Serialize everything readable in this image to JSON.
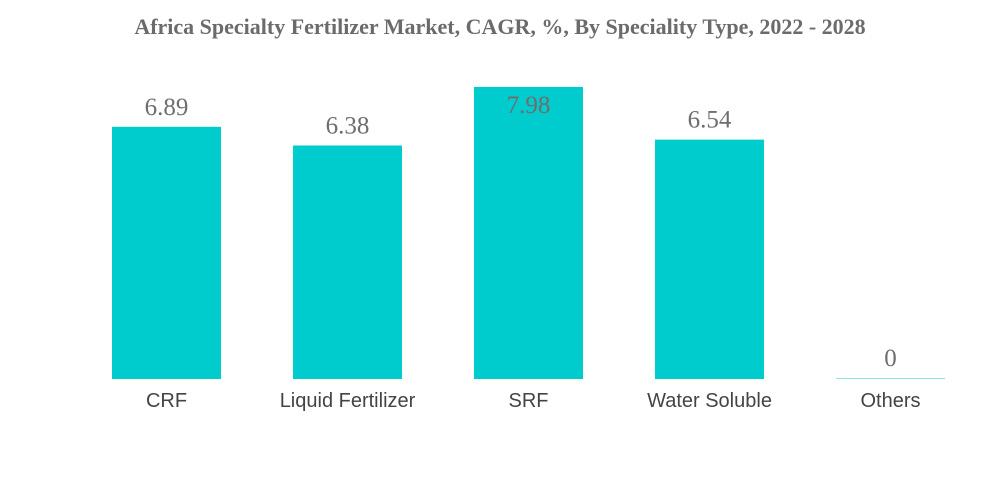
{
  "chart_data": {
    "type": "bar",
    "title": "Africa Specialty Fertilizer Market, CAGR, %, By Speciality Type, 2022 - 2028",
    "categories": [
      "CRF",
      "Liquid Fertilizer",
      "SRF",
      "Water Soluble",
      "Others"
    ],
    "values": [
      6.89,
      6.38,
      7.98,
      6.54,
      0
    ],
    "value_labels": [
      "6.89",
      "6.38",
      "7.98",
      "6.54",
      "0"
    ],
    "xlabel": "",
    "ylabel": "",
    "ylim": [
      0,
      8.5
    ],
    "grid": false,
    "legend": "none",
    "bar_color": "#00cccd",
    "value_label_color": "#6e6e6e"
  }
}
